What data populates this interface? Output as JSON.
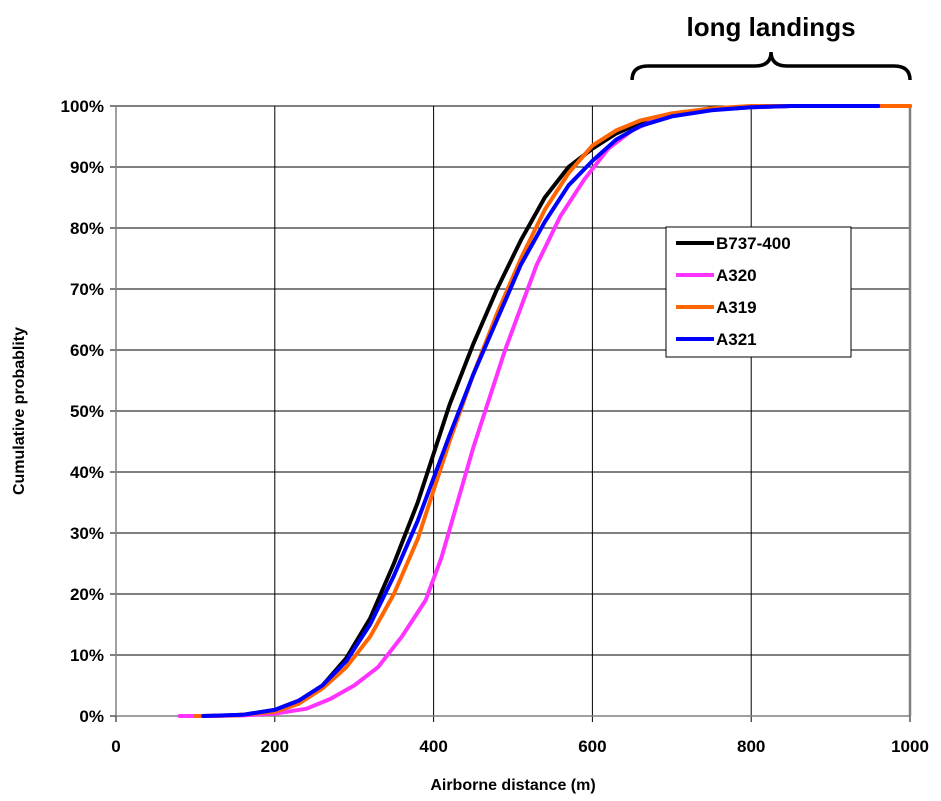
{
  "chart_data": {
    "type": "line",
    "title": "",
    "xlabel": "Airborne distance (m)",
    "ylabel": "Cumulative probablity",
    "xlim": [
      0,
      1000
    ],
    "ylim": [
      0,
      100
    ],
    "x_ticks": [
      0,
      200,
      400,
      600,
      800,
      1000
    ],
    "y_ticks": [
      0,
      10,
      20,
      30,
      40,
      50,
      60,
      70,
      80,
      90,
      100
    ],
    "x_tick_labels": [
      "0",
      "200",
      "400",
      "600",
      "800",
      "1000"
    ],
    "y_tick_labels": [
      "0%",
      "10%",
      "20%",
      "30%",
      "40%",
      "50%",
      "60%",
      "70%",
      "80%",
      "90%",
      "100%"
    ],
    "grid": true,
    "legend_position": "right",
    "annotation": {
      "text": "long landings",
      "x_range": [
        650,
        1000
      ]
    },
    "series": [
      {
        "name": "B737-400",
        "color": "#000000",
        "points": [
          [
            120,
            0
          ],
          [
            160,
            0.2
          ],
          [
            200,
            1
          ],
          [
            230,
            2.5
          ],
          [
            260,
            5
          ],
          [
            290,
            9.5
          ],
          [
            320,
            16
          ],
          [
            350,
            25
          ],
          [
            380,
            35
          ],
          [
            400,
            43
          ],
          [
            420,
            51
          ],
          [
            450,
            61
          ],
          [
            480,
            70
          ],
          [
            510,
            78
          ],
          [
            540,
            85
          ],
          [
            570,
            90
          ],
          [
            600,
            93
          ],
          [
            630,
            95.5
          ],
          [
            660,
            97.2
          ],
          [
            700,
            98.5
          ],
          [
            750,
            99.4
          ],
          [
            800,
            99.8
          ],
          [
            850,
            100
          ],
          [
            1000,
            100
          ]
        ]
      },
      {
        "name": "A320",
        "color": "#ff33ff",
        "points": [
          [
            80,
            0
          ],
          [
            120,
            0
          ],
          [
            160,
            0.1
          ],
          [
            200,
            0.4
          ],
          [
            240,
            1.2
          ],
          [
            270,
            2.8
          ],
          [
            300,
            5
          ],
          [
            330,
            8
          ],
          [
            360,
            13
          ],
          [
            390,
            19
          ],
          [
            410,
            26
          ],
          [
            430,
            35
          ],
          [
            450,
            44
          ],
          [
            470,
            52
          ],
          [
            490,
            60
          ],
          [
            510,
            67
          ],
          [
            530,
            74
          ],
          [
            560,
            82
          ],
          [
            590,
            88
          ],
          [
            620,
            93
          ],
          [
            650,
            96
          ],
          [
            680,
            97.8
          ],
          [
            720,
            99
          ],
          [
            780,
            99.7
          ],
          [
            850,
            100
          ],
          [
            1000,
            100
          ]
        ]
      },
      {
        "name": "A319",
        "color": "#ff6600",
        "points": [
          [
            100,
            0
          ],
          [
            150,
            0.1
          ],
          [
            200,
            0.7
          ],
          [
            230,
            2
          ],
          [
            260,
            4.5
          ],
          [
            290,
            8
          ],
          [
            320,
            13
          ],
          [
            350,
            20
          ],
          [
            380,
            29
          ],
          [
            400,
            37
          ],
          [
            420,
            45
          ],
          [
            450,
            56
          ],
          [
            480,
            66
          ],
          [
            510,
            75
          ],
          [
            540,
            83
          ],
          [
            570,
            89
          ],
          [
            600,
            93.5
          ],
          [
            630,
            96
          ],
          [
            660,
            97.6
          ],
          [
            700,
            98.8
          ],
          [
            750,
            99.6
          ],
          [
            800,
            100
          ],
          [
            1000,
            100
          ]
        ]
      },
      {
        "name": "A321",
        "color": "#0000ff",
        "points": [
          [
            110,
            0
          ],
          [
            160,
            0.2
          ],
          [
            200,
            1
          ],
          [
            230,
            2.5
          ],
          [
            260,
            5
          ],
          [
            290,
            9
          ],
          [
            320,
            15
          ],
          [
            350,
            23
          ],
          [
            380,
            32
          ],
          [
            400,
            39
          ],
          [
            420,
            46
          ],
          [
            450,
            56
          ],
          [
            480,
            65
          ],
          [
            510,
            74
          ],
          [
            540,
            81
          ],
          [
            570,
            87
          ],
          [
            600,
            91
          ],
          [
            630,
            94.5
          ],
          [
            660,
            96.7
          ],
          [
            700,
            98.3
          ],
          [
            750,
            99.3
          ],
          [
            800,
            99.8
          ],
          [
            850,
            100
          ],
          [
            960,
            100
          ]
        ]
      }
    ]
  }
}
